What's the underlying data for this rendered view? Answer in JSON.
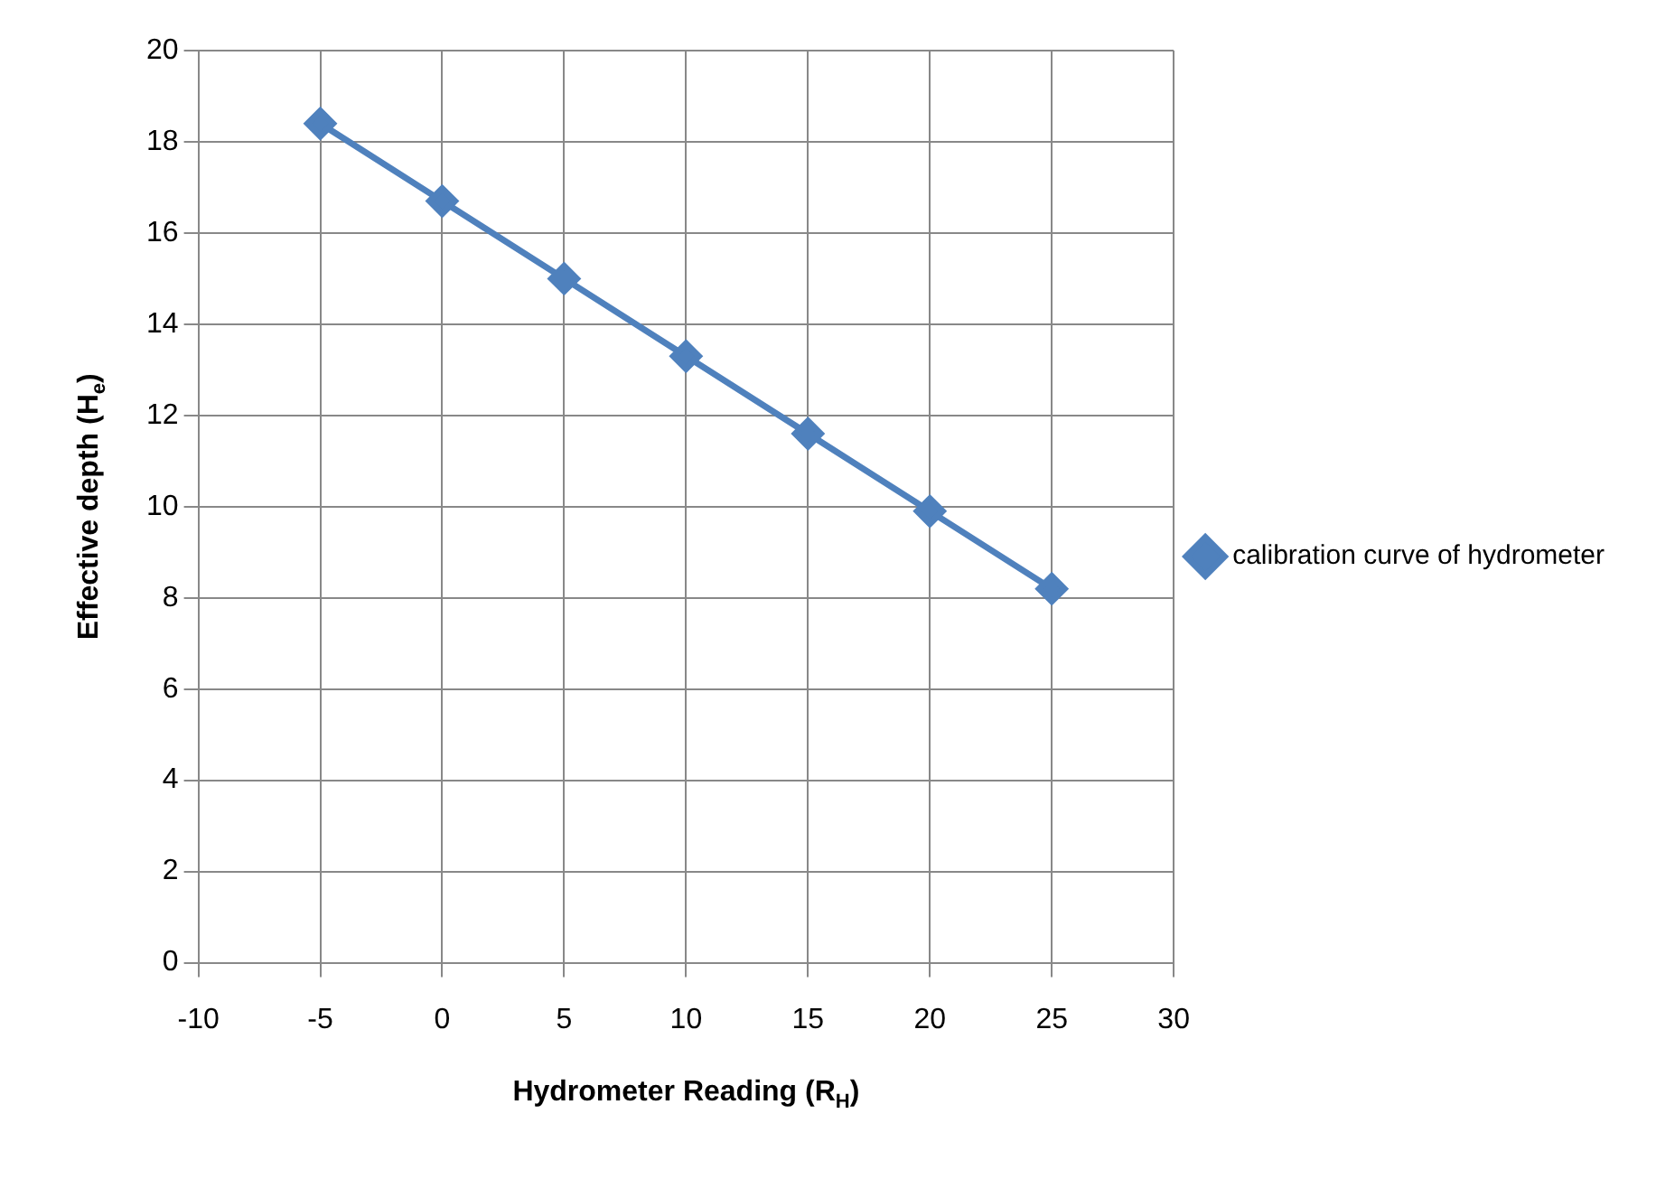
{
  "chart_data": {
    "type": "line",
    "xlabel": "Hydrometer Reading (R$_{H}$)",
    "ylabel": "Effective depth (H$_{e}$)",
    "x": [
      -5,
      0,
      5,
      10,
      15,
      20,
      25
    ],
    "series": [
      {
        "name": "calibration curve of hydrometer",
        "color": "#4f81bd",
        "values": [
          18.4,
          16.7,
          15.0,
          13.3,
          11.6,
          9.9,
          8.2
        ]
      }
    ],
    "xlim": [
      -10,
      30
    ],
    "xticks": [
      -10,
      -5,
      0,
      5,
      10,
      15,
      20,
      25,
      30
    ],
    "ylim": [
      0,
      20
    ],
    "yticks": [
      0,
      2,
      4,
      6,
      8,
      10,
      12,
      14,
      16,
      18,
      20
    ],
    "grid": true,
    "legend": "right",
    "marker": "diamond",
    "line_style": "solid"
  }
}
